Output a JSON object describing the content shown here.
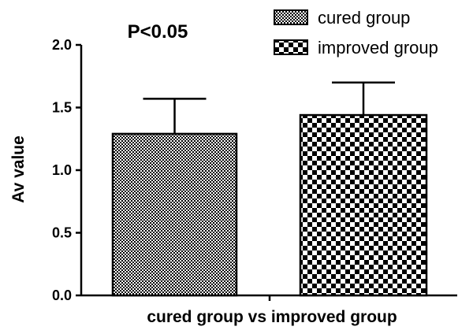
{
  "chart_data": {
    "type": "bar",
    "title": "",
    "annotation": "P<0.05",
    "xlabel": "cured group vs improved group",
    "ylabel": "Av value",
    "ylim": [
      0,
      2.0
    ],
    "yticks": [
      "0.0",
      "0.5",
      "1.0",
      "1.5",
      "2.0"
    ],
    "grid": false,
    "legend_position": "top-right",
    "series": [
      {
        "name": "cured group",
        "value": 1.29,
        "error": 0.28,
        "pattern": "fine-checker"
      },
      {
        "name": "improved group",
        "value": 1.44,
        "error": 0.26,
        "pattern": "coarse-checker"
      }
    ],
    "colors": {
      "ink": "#000000",
      "background": "#ffffff"
    }
  }
}
